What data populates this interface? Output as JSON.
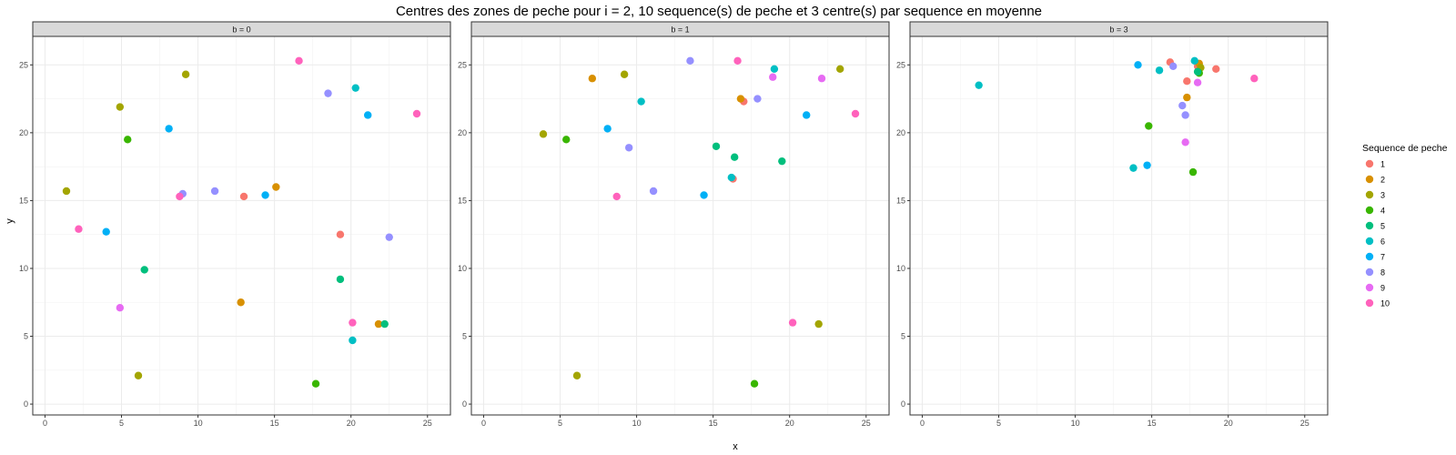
{
  "chart_data": {
    "type": "scatter",
    "title": "Centres des zones de peche pour i = 2, 10 sequence(s) de peche et 3 centre(s) par sequence en moyenne",
    "xlabel": "x",
    "ylabel": "y",
    "xlim": [
      -0.8,
      26.5
    ],
    "ylim": [
      -0.8,
      27.1
    ],
    "x_ticks": [
      0,
      5,
      10,
      15,
      20,
      25
    ],
    "y_ticks": [
      0,
      5,
      10,
      15,
      20,
      25
    ],
    "grid": true,
    "legend": {
      "title": "Sequence de peche",
      "placement": "right",
      "entries": [
        "1",
        "2",
        "3",
        "4",
        "5",
        "6",
        "7",
        "8",
        "9",
        "10"
      ]
    },
    "colors": {
      "1": "#F8766D",
      "2": "#D89000",
      "3": "#A3A500",
      "4": "#39B600",
      "5": "#00BF7D",
      "6": "#00BFC4",
      "7": "#00B0F6",
      "8": "#9590FF",
      "9": "#E76BF3",
      "10": "#FF62BC"
    },
    "panels": [
      {
        "label": "b = 0",
        "points": [
          {
            "seq": 1,
            "x": 13.0,
            "y": 15.3
          },
          {
            "seq": 1,
            "x": 19.3,
            "y": 12.5
          },
          {
            "seq": 2,
            "x": 15.1,
            "y": 16.0
          },
          {
            "seq": 2,
            "x": 12.8,
            "y": 7.5
          },
          {
            "seq": 2,
            "x": 21.8,
            "y": 5.9
          },
          {
            "seq": 3,
            "x": 9.2,
            "y": 24.3
          },
          {
            "seq": 3,
            "x": 4.9,
            "y": 21.9
          },
          {
            "seq": 3,
            "x": 1.4,
            "y": 15.7
          },
          {
            "seq": 3,
            "x": 6.1,
            "y": 2.1
          },
          {
            "seq": 4,
            "x": 5.4,
            "y": 19.5
          },
          {
            "seq": 4,
            "x": 17.7,
            "y": 1.5
          },
          {
            "seq": 5,
            "x": 6.5,
            "y": 9.9
          },
          {
            "seq": 5,
            "x": 19.3,
            "y": 9.2
          },
          {
            "seq": 5,
            "x": 22.2,
            "y": 5.9
          },
          {
            "seq": 6,
            "x": 20.3,
            "y": 23.3
          },
          {
            "seq": 6,
            "x": 20.1,
            "y": 4.7
          },
          {
            "seq": 7,
            "x": 8.1,
            "y": 20.3
          },
          {
            "seq": 7,
            "x": 21.1,
            "y": 21.3
          },
          {
            "seq": 7,
            "x": 14.4,
            "y": 15.4
          },
          {
            "seq": 7,
            "x": 4.0,
            "y": 12.7
          },
          {
            "seq": 8,
            "x": 18.5,
            "y": 22.9
          },
          {
            "seq": 8,
            "x": 9.0,
            "y": 15.5
          },
          {
            "seq": 8,
            "x": 11.1,
            "y": 15.7
          },
          {
            "seq": 8,
            "x": 22.5,
            "y": 12.3
          },
          {
            "seq": 9,
            "x": 4.9,
            "y": 7.1
          },
          {
            "seq": 10,
            "x": 16.6,
            "y": 25.3
          },
          {
            "seq": 10,
            "x": 24.3,
            "y": 21.4
          },
          {
            "seq": 10,
            "x": 8.8,
            "y": 15.3
          },
          {
            "seq": 10,
            "x": 2.2,
            "y": 12.9
          },
          {
            "seq": 10,
            "x": 20.1,
            "y": 6.0
          }
        ]
      },
      {
        "label": "b = 1",
        "points": [
          {
            "seq": 1,
            "x": 17.0,
            "y": 22.3
          },
          {
            "seq": 1,
            "x": 16.3,
            "y": 16.6
          },
          {
            "seq": 2,
            "x": 7.1,
            "y": 24.0
          },
          {
            "seq": 2,
            "x": 16.8,
            "y": 22.5
          },
          {
            "seq": 3,
            "x": 9.2,
            "y": 24.3
          },
          {
            "seq": 3,
            "x": 23.3,
            "y": 24.7
          },
          {
            "seq": 3,
            "x": 3.9,
            "y": 19.9
          },
          {
            "seq": 3,
            "x": 21.9,
            "y": 5.9
          },
          {
            "seq": 3,
            "x": 6.1,
            "y": 2.1
          },
          {
            "seq": 4,
            "x": 5.4,
            "y": 19.5
          },
          {
            "seq": 4,
            "x": 17.7,
            "y": 1.5
          },
          {
            "seq": 5,
            "x": 15.2,
            "y": 19.0
          },
          {
            "seq": 5,
            "x": 16.4,
            "y": 18.2
          },
          {
            "seq": 5,
            "x": 19.5,
            "y": 17.9
          },
          {
            "seq": 6,
            "x": 10.3,
            "y": 22.3
          },
          {
            "seq": 6,
            "x": 16.2,
            "y": 16.7
          },
          {
            "seq": 6,
            "x": 19.0,
            "y": 24.7
          },
          {
            "seq": 7,
            "x": 8.1,
            "y": 20.3
          },
          {
            "seq": 7,
            "x": 21.1,
            "y": 21.3
          },
          {
            "seq": 7,
            "x": 14.4,
            "y": 15.4
          },
          {
            "seq": 8,
            "x": 13.5,
            "y": 25.3
          },
          {
            "seq": 8,
            "x": 17.9,
            "y": 22.5
          },
          {
            "seq": 8,
            "x": 9.5,
            "y": 18.9
          },
          {
            "seq": 8,
            "x": 11.1,
            "y": 15.7
          },
          {
            "seq": 9,
            "x": 18.9,
            "y": 24.1
          },
          {
            "seq": 9,
            "x": 22.1,
            "y": 24.0
          },
          {
            "seq": 10,
            "x": 16.6,
            "y": 25.3
          },
          {
            "seq": 10,
            "x": 24.3,
            "y": 21.4
          },
          {
            "seq": 10,
            "x": 8.7,
            "y": 15.3
          },
          {
            "seq": 10,
            "x": 20.2,
            "y": 6.0
          }
        ]
      },
      {
        "label": "b = 3",
        "points": [
          {
            "seq": 1,
            "x": 16.2,
            "y": 25.2
          },
          {
            "seq": 1,
            "x": 19.2,
            "y": 24.7
          },
          {
            "seq": 1,
            "x": 17.3,
            "y": 23.8
          },
          {
            "seq": 1,
            "x": 18.0,
            "y": 24.9
          },
          {
            "seq": 2,
            "x": 17.3,
            "y": 22.6
          },
          {
            "seq": 2,
            "x": 18.1,
            "y": 25.1
          },
          {
            "seq": 3,
            "x": 18.2,
            "y": 24.8
          },
          {
            "seq": 4,
            "x": 14.8,
            "y": 20.5
          },
          {
            "seq": 4,
            "x": 17.7,
            "y": 17.1
          },
          {
            "seq": 4,
            "x": 18.1,
            "y": 24.4
          },
          {
            "seq": 5,
            "x": 18.0,
            "y": 24.5
          },
          {
            "seq": 6,
            "x": 3.7,
            "y": 23.5
          },
          {
            "seq": 6,
            "x": 15.5,
            "y": 24.6
          },
          {
            "seq": 6,
            "x": 13.8,
            "y": 17.4
          },
          {
            "seq": 6,
            "x": 17.8,
            "y": 25.3
          },
          {
            "seq": 7,
            "x": 14.1,
            "y": 25.0
          },
          {
            "seq": 7,
            "x": 14.7,
            "y": 17.6
          },
          {
            "seq": 8,
            "x": 16.4,
            "y": 24.9
          },
          {
            "seq": 8,
            "x": 17.0,
            "y": 22.0
          },
          {
            "seq": 8,
            "x": 17.2,
            "y": 21.3
          },
          {
            "seq": 9,
            "x": 18.0,
            "y": 23.7
          },
          {
            "seq": 9,
            "x": 17.2,
            "y": 19.3
          },
          {
            "seq": 10,
            "x": 21.7,
            "y": 24.0
          }
        ]
      }
    ]
  }
}
